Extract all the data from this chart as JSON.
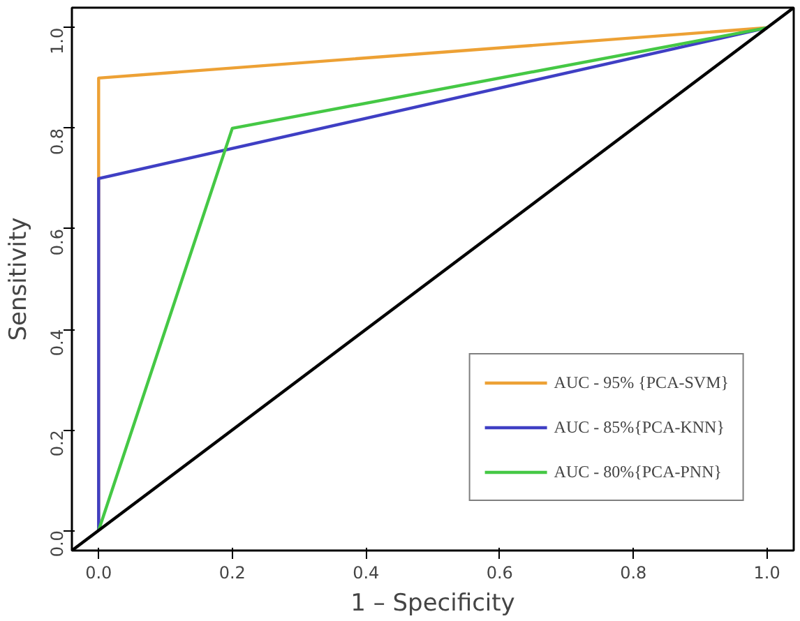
{
  "chart_data": {
    "type": "line",
    "xlabel": "1 – Specificity",
    "ylabel": "Sensitivity",
    "xlim": [
      -0.04,
      1.04
    ],
    "ylim": [
      -0.04,
      1.04
    ],
    "xticks": [
      {
        "value": 0,
        "label": "0.0"
      },
      {
        "value": 0.2,
        "label": "0.2"
      },
      {
        "value": 0.4,
        "label": "0.4"
      },
      {
        "value": 0.6,
        "label": "0.6"
      },
      {
        "value": 0.8,
        "label": "0.8"
      },
      {
        "value": 1,
        "label": "1.0"
      }
    ],
    "yticks": [
      {
        "value": 0,
        "label": "0.0"
      },
      {
        "value": 0.2,
        "label": "0.2"
      },
      {
        "value": 0.4,
        "label": "0.4"
      },
      {
        "value": 0.6,
        "label": "0.6"
      },
      {
        "value": 0.8,
        "label": "0.8"
      },
      {
        "value": 1,
        "label": "1.0"
      }
    ],
    "grid": false,
    "legend": "bottom right",
    "series": [
      {
        "name": "AUC - 95% {PCA-SVM}",
        "color": "#eda135",
        "x": [
          0,
          0,
          1
        ],
        "values": [
          0,
          0.9,
          1
        ]
      },
      {
        "name": "AUC - 85%{PCA-KNN}",
        "color": "#3f3fc4",
        "x": [
          0,
          0,
          1
        ],
        "values": [
          0,
          0.7,
          1
        ]
      },
      {
        "name": "AUC - 80%{PCA-PNN}",
        "color": "#45c845",
        "x": [
          0,
          0.2,
          1
        ],
        "values": [
          0,
          0.8,
          1
        ]
      },
      {
        "color": "#000000",
        "x": [
          -0.04,
          1.04
        ],
        "values": [
          -0.04,
          1.04
        ]
      }
    ]
  }
}
